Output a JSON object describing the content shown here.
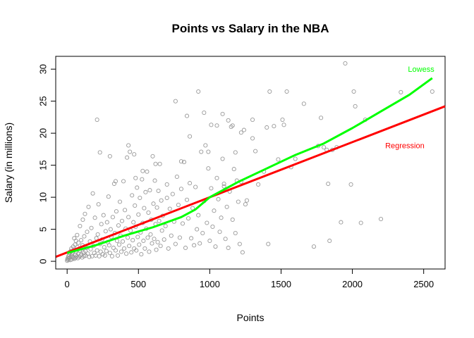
{
  "chart_data": {
    "type": "scatter",
    "title": "Points vs Salary in the NBA",
    "xlabel": "Points",
    "ylabel": "Salary (in millions)",
    "xlim": [
      -80,
      2650
    ],
    "ylim": [
      -1.2,
      32
    ],
    "x_ticks": [
      0,
      500,
      1000,
      1500,
      2000,
      2500
    ],
    "y_ticks": [
      0,
      5,
      10,
      15,
      20,
      25,
      30
    ],
    "grid": false,
    "point_color": "#999999",
    "series": [
      {
        "kind": "scatter",
        "points": [
          [
            0,
            0.1
          ],
          [
            2,
            0.3
          ],
          [
            5,
            0.5
          ],
          [
            8,
            0.2
          ],
          [
            10,
            0.8
          ],
          [
            12,
            0.4
          ],
          [
            15,
            1.0
          ],
          [
            18,
            0.6
          ],
          [
            20,
            1.3
          ],
          [
            22,
            0.2
          ],
          [
            25,
            1.6
          ],
          [
            28,
            0.9
          ],
          [
            30,
            2.0
          ],
          [
            33,
            0.3
          ],
          [
            35,
            1.1
          ],
          [
            38,
            1.4
          ],
          [
            40,
            0.7
          ],
          [
            42,
            2.3
          ],
          [
            45,
            0.5
          ],
          [
            48,
            1.8
          ],
          [
            50,
            3.6
          ],
          [
            52,
            0.4
          ],
          [
            55,
            2.6
          ],
          [
            58,
            1.0
          ],
          [
            60,
            0.6
          ],
          [
            62,
            3.2
          ],
          [
            65,
            1.5
          ],
          [
            68,
            0.8
          ],
          [
            70,
            4.1
          ],
          [
            72,
            2.2
          ],
          [
            75,
            0.5
          ],
          [
            78,
            1.2
          ],
          [
            80,
            2.9
          ],
          [
            85,
            0.7
          ],
          [
            88,
            1.7
          ],
          [
            90,
            5.5
          ],
          [
            95,
            0.9
          ],
          [
            98,
            3.3
          ],
          [
            100,
            1.1
          ],
          [
            105,
            0.6
          ],
          [
            108,
            2.5
          ],
          [
            110,
            6.5
          ],
          [
            115,
            1.4
          ],
          [
            118,
            0.8
          ],
          [
            120,
            3.9
          ],
          [
            125,
            7.4
          ],
          [
            128,
            1.6
          ],
          [
            130,
            0.9
          ],
          [
            135,
            2.1
          ],
          [
            140,
            4.6
          ],
          [
            145,
            1.2
          ],
          [
            150,
            8.5
          ],
          [
            155,
            0.7
          ],
          [
            160,
            3.1
          ],
          [
            165,
            1.9
          ],
          [
            170,
            5.2
          ],
          [
            175,
            0.8
          ],
          [
            180,
            10.6
          ],
          [
            185,
            2.4
          ],
          [
            190,
            1.3
          ],
          [
            195,
            6.8
          ],
          [
            200,
            0.9
          ],
          [
            205,
            3.6
          ],
          [
            210,
            1.7
          ],
          [
            215,
            4.2
          ],
          [
            220,
            8.9
          ],
          [
            225,
            0.8
          ],
          [
            230,
            2.7
          ],
          [
            235,
            1.5
          ],
          [
            240,
            5.8
          ],
          [
            245,
            3.4
          ],
          [
            250,
            1.1
          ],
          [
            255,
            7.2
          ],
          [
            260,
            2.2
          ],
          [
            265,
            0.9
          ],
          [
            270,
            4.7
          ],
          [
            275,
            1.6
          ],
          [
            280,
            6.1
          ],
          [
            285,
            3.0
          ],
          [
            290,
            10.1
          ],
          [
            295,
            2.5
          ],
          [
            300,
            1.3
          ],
          [
            305,
            5.0
          ],
          [
            310,
            3.8
          ],
          [
            315,
            0.8
          ],
          [
            320,
            6.9
          ],
          [
            325,
            2.1
          ],
          [
            330,
            12.1
          ],
          [
            335,
            4.4
          ],
          [
            340,
            1.7
          ],
          [
            345,
            7.8
          ],
          [
            350,
            3.2
          ],
          [
            355,
            0.9
          ],
          [
            360,
            5.6
          ],
          [
            365,
            2.6
          ],
          [
            370,
            9.3
          ],
          [
            375,
            4.0
          ],
          [
            380,
            1.5
          ],
          [
            385,
            6.3
          ],
          [
            390,
            3.1
          ],
          [
            395,
            12.5
          ],
          [
            400,
            2.0
          ],
          [
            405,
            8.0
          ],
          [
            410,
            5.1
          ],
          [
            415,
            1.2
          ],
          [
            420,
            16.2
          ],
          [
            425,
            3.7
          ],
          [
            430,
            6.9
          ],
          [
            435,
            2.4
          ],
          [
            440,
            17.1
          ],
          [
            445,
            4.8
          ],
          [
            450,
            1.4
          ],
          [
            455,
            10.3
          ],
          [
            460,
            3.3
          ],
          [
            465,
            6.1
          ],
          [
            470,
            2.0
          ],
          [
            475,
            8.7
          ],
          [
            480,
            5.4
          ],
          [
            485,
            1.7
          ],
          [
            490,
            11.5
          ],
          [
            495,
            3.8
          ],
          [
            500,
            7.3
          ],
          [
            505,
            2.6
          ],
          [
            510,
            9.9
          ],
          [
            515,
            4.5
          ],
          [
            520,
            1.1
          ],
          [
            525,
            12.8
          ],
          [
            530,
            6.0
          ],
          [
            535,
            3.2
          ],
          [
            540,
            8.3
          ],
          [
            545,
            2.0
          ],
          [
            550,
            10.8
          ],
          [
            555,
            5.1
          ],
          [
            560,
            14.0
          ],
          [
            565,
            3.7
          ],
          [
            570,
            7.6
          ],
          [
            575,
            1.5
          ],
          [
            580,
            11.1
          ],
          [
            585,
            4.2
          ],
          [
            590,
            6.5
          ],
          [
            595,
            2.8
          ],
          [
            600,
            16.4
          ],
          [
            605,
            9.0
          ],
          [
            610,
            3.5
          ],
          [
            615,
            12.6
          ],
          [
            620,
            5.8
          ],
          [
            625,
            1.8
          ],
          [
            630,
            8.4
          ],
          [
            635,
            3.0
          ],
          [
            640,
            11.0
          ],
          [
            645,
            6.3
          ],
          [
            650,
            15.2
          ],
          [
            655,
            2.4
          ],
          [
            660,
            9.5
          ],
          [
            665,
            4.8
          ],
          [
            670,
            7.1
          ],
          [
            680,
            3.4
          ],
          [
            690,
            5.5
          ],
          [
            700,
            12.0
          ],
          [
            710,
            2.0
          ],
          [
            720,
            8.2
          ],
          [
            730,
            4.0
          ],
          [
            740,
            10.5
          ],
          [
            750,
            6.2
          ],
          [
            760,
            2.7
          ],
          [
            770,
            13.2
          ],
          [
            780,
            8.8
          ],
          [
            790,
            3.7
          ],
          [
            800,
            11.3
          ],
          [
            810,
            5.9
          ],
          [
            820,
            15.5
          ],
          [
            830,
            2.1
          ],
          [
            840,
            9.6
          ],
          [
            850,
            6.7
          ],
          [
            860,
            12.2
          ],
          [
            870,
            3.6
          ],
          [
            880,
            8.3
          ],
          [
            890,
            2.5
          ],
          [
            900,
            11.6
          ],
          [
            910,
            5.0
          ],
          [
            920,
            7.2
          ],
          [
            930,
            2.8
          ],
          [
            940,
            17.1
          ],
          [
            950,
            4.4
          ],
          [
            960,
            9.4
          ],
          [
            970,
            18.1
          ],
          [
            980,
            6.0
          ],
          [
            990,
            14.5
          ],
          [
            1000,
            3.2
          ],
          [
            1010,
            11.4
          ],
          [
            1020,
            5.4
          ],
          [
            1030,
            7.9
          ],
          [
            1040,
            2.3
          ],
          [
            1050,
            13.0
          ],
          [
            1060,
            9.7
          ],
          [
            1070,
            4.6
          ],
          [
            1080,
            6.8
          ],
          [
            1090,
            16.0
          ],
          [
            1100,
            11.7
          ],
          [
            1110,
            3.5
          ],
          [
            1120,
            8.5
          ],
          [
            1130,
            2.1
          ],
          [
            1140,
            10.9
          ],
          [
            1150,
            21.0
          ],
          [
            1160,
            6.5
          ],
          [
            1170,
            14.4
          ],
          [
            1180,
            4.4
          ],
          [
            1190,
            12.6
          ],
          [
            1200,
            9.3
          ],
          [
            1210,
            2.7
          ],
          [
            1220,
            12.4
          ],
          [
            1230,
            1.4
          ],
          [
            1240,
            20.5
          ],
          [
            1250,
            8.9
          ],
          [
            1300,
            22.1
          ],
          [
            1320,
            17.2
          ],
          [
            1340,
            12.0
          ],
          [
            1380,
            14.0
          ],
          [
            1410,
            2.7
          ],
          [
            1420,
            26.5
          ],
          [
            1450,
            21.1
          ],
          [
            1480,
            15.9
          ],
          [
            1510,
            22.1
          ],
          [
            1540,
            26.5
          ],
          [
            1570,
            14.7
          ],
          [
            1600,
            16.0
          ],
          [
            1660,
            24.6
          ],
          [
            1730,
            2.3
          ],
          [
            1760,
            18.0
          ],
          [
            1780,
            22.4
          ],
          [
            1800,
            17.8
          ],
          [
            1820,
            17.4
          ],
          [
            1830,
            12.1
          ],
          [
            1840,
            3.2
          ],
          [
            1860,
            17.4
          ],
          [
            1890,
            17.8
          ],
          [
            1920,
            6.1
          ],
          [
            1950,
            30.9
          ],
          [
            1990,
            12.0
          ],
          [
            2010,
            26.5
          ],
          [
            2020,
            24.2
          ],
          [
            2060,
            6.0
          ],
          [
            2090,
            22.1
          ],
          [
            2200,
            6.6
          ],
          [
            2340,
            26.4
          ],
          [
            2560,
            26.5
          ],
          [
            210,
            22.1
          ],
          [
            230,
            17.0
          ],
          [
            300,
            16.4
          ],
          [
            340,
            12.5
          ],
          [
            430,
            18.1
          ],
          [
            470,
            16.7
          ],
          [
            480,
            13.0
          ],
          [
            530,
            14.1
          ],
          [
            620,
            15.2
          ],
          [
            700,
            9.9
          ],
          [
            760,
            25.0
          ],
          [
            800,
            15.6
          ],
          [
            840,
            22.7
          ],
          [
            860,
            19.5
          ],
          [
            920,
            26.5
          ],
          [
            960,
            23.2
          ],
          [
            990,
            17.1
          ],
          [
            1010,
            21.3
          ],
          [
            1050,
            21.2
          ],
          [
            1090,
            23.0
          ],
          [
            1100,
            12.1
          ],
          [
            1130,
            22.0
          ],
          [
            1160,
            21.2
          ],
          [
            1180,
            17.0
          ],
          [
            1220,
            20.1
          ],
          [
            1260,
            9.5
          ],
          [
            1300,
            19.2
          ],
          [
            1400,
            20.9
          ],
          [
            1520,
            21.3
          ]
        ]
      },
      {
        "kind": "line",
        "name": "Regression",
        "color": "#ff0000",
        "points": [
          [
            -80,
            0.7
          ],
          [
            2650,
            24.2
          ]
        ]
      },
      {
        "kind": "line",
        "name": "Lowess",
        "color": "#00ff00",
        "points": [
          [
            0,
            1.3
          ],
          [
            200,
            2.5
          ],
          [
            400,
            4.0
          ],
          [
            600,
            5.3
          ],
          [
            800,
            6.9
          ],
          [
            900,
            8.1
          ],
          [
            1000,
            10.0
          ],
          [
            1200,
            12.4
          ],
          [
            1400,
            14.5
          ],
          [
            1600,
            16.6
          ],
          [
            1800,
            18.4
          ],
          [
            2000,
            20.8
          ],
          [
            2200,
            23.4
          ],
          [
            2400,
            26.0
          ],
          [
            2560,
            28.6
          ]
        ]
      }
    ],
    "annotations": [
      {
        "text": "Lowess",
        "color": "#00ff00",
        "x": 2390,
        "y": 29.9
      },
      {
        "text": "Regression",
        "color": "#ff0000",
        "x": 2230,
        "y": 18.0
      }
    ]
  }
}
